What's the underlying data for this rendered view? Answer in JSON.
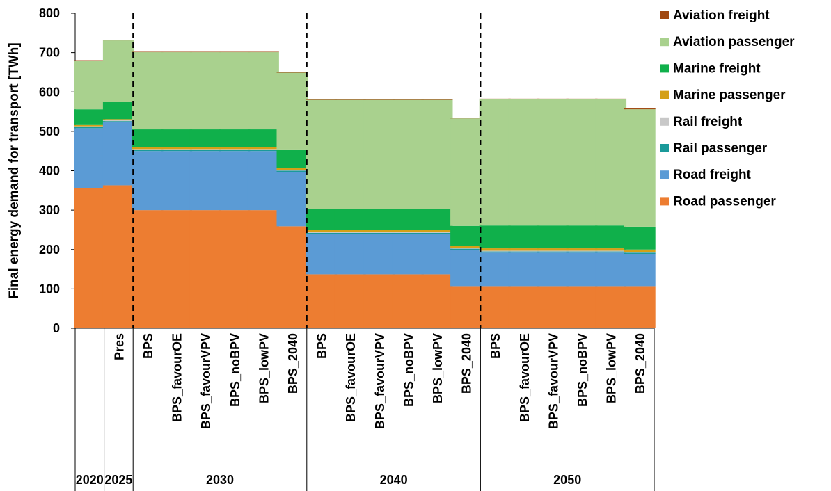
{
  "chart_data": {
    "type": "bar",
    "stacked": true,
    "ylabel": "Final energy demand for transport [TWh]",
    "ylim": [
      0,
      800
    ],
    "yticks": [
      0,
      100,
      200,
      300,
      400,
      500,
      600,
      700,
      800
    ],
    "grid": false,
    "legend_position": "right",
    "groups": [
      {
        "label": "2020",
        "categories": [
          ""
        ]
      },
      {
        "label": "2025",
        "categories": [
          "Pres"
        ]
      },
      {
        "label": "2030",
        "categories": [
          "BPS",
          "BPS_favourOE",
          "BPS_favourVPV",
          "BPS_noBPV",
          "BPS_lowPV",
          "BPS_2040"
        ]
      },
      {
        "label": "2040",
        "categories": [
          "BPS",
          "BPS_favourOE",
          "BPS_favourVPV",
          "BPS_noBPV",
          "BPS_lowPV",
          "BPS_2040"
        ]
      },
      {
        "label": "2050",
        "categories": [
          "BPS",
          "BPS_favourOE",
          "BPS_favourVPV",
          "BPS_noBPV",
          "BPS_lowPV",
          "BPS_2040"
        ]
      }
    ],
    "categories": [
      "",
      "Pres",
      "BPS",
      "BPS_favourOE",
      "BPS_favourVPV",
      "BPS_noBPV",
      "BPS_lowPV",
      "BPS_2040",
      "BPS",
      "BPS_favourOE",
      "BPS_favourVPV",
      "BPS_noBPV",
      "BPS_lowPV",
      "BPS_2040",
      "BPS",
      "BPS_favourOE",
      "BPS_favourVPV",
      "BPS_noBPV",
      "BPS_lowPV",
      "BPS_2040"
    ],
    "series": [
      {
        "name": "Road passenger",
        "color": "#ED7D31",
        "values": [
          356,
          363,
          300,
          300,
          300,
          300,
          300,
          259,
          137,
          137,
          137,
          137,
          137,
          107,
          107,
          107,
          107,
          107,
          107,
          107
        ]
      },
      {
        "name": "Road freight",
        "color": "#5B9BD5",
        "values": [
          152,
          160,
          150,
          150,
          150,
          150,
          150,
          138,
          102,
          102,
          102,
          102,
          102,
          92,
          85,
          85,
          85,
          85,
          85,
          82
        ]
      },
      {
        "name": "Rail passenger",
        "color": "#1A9A9A",
        "values": [
          3,
          3,
          3,
          3,
          3,
          3,
          3,
          3,
          3,
          3,
          3,
          3,
          3,
          3,
          3,
          3,
          3,
          3,
          3,
          3
        ]
      },
      {
        "name": "Rail freight",
        "color": "#C8C8C8",
        "values": [
          2,
          2,
          2,
          2,
          2,
          2,
          2,
          2,
          2,
          2,
          2,
          2,
          2,
          2,
          2,
          2,
          2,
          2,
          2,
          2
        ]
      },
      {
        "name": "Marine passenger",
        "color": "#D4A017",
        "values": [
          3,
          3,
          5,
          5,
          5,
          5,
          5,
          5,
          6,
          6,
          6,
          6,
          6,
          5,
          6,
          6,
          6,
          6,
          6,
          6
        ]
      },
      {
        "name": "Marine freight",
        "color": "#10B04B",
        "values": [
          40,
          43,
          45,
          45,
          45,
          45,
          45,
          47,
          52,
          52,
          52,
          52,
          52,
          51,
          58,
          58,
          58,
          58,
          58,
          58
        ]
      },
      {
        "name": "Aviation passenger",
        "color": "#A9D18E",
        "values": [
          124,
          157,
          196,
          196,
          196,
          196,
          196,
          195,
          278,
          278,
          278,
          278,
          278,
          273,
          320,
          320,
          320,
          320,
          320,
          298
        ]
      },
      {
        "name": "Aviation freight",
        "color": "#A0470F",
        "values": [
          0.8,
          0.8,
          1,
          1,
          1,
          1,
          1,
          1,
          2,
          2,
          2,
          2,
          2,
          2,
          2,
          2,
          2,
          2,
          2,
          2
        ]
      }
    ]
  }
}
